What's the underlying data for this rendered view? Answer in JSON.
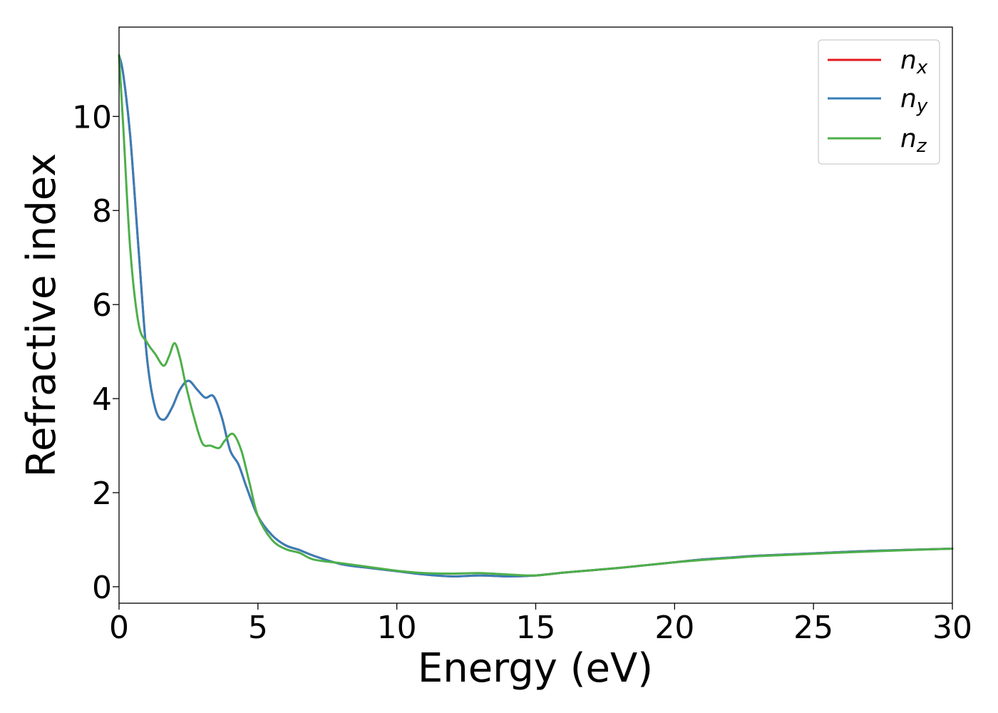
{
  "chart_data": {
    "type": "line",
    "xlabel": "Energy (eV)",
    "ylabel": "Refractive index",
    "xlim": [
      0,
      30
    ],
    "ylim": [
      -0.35,
      11.9
    ],
    "xticks": [
      0,
      5,
      10,
      15,
      20,
      25,
      30
    ],
    "yticks": [
      0,
      2,
      4,
      6,
      8,
      10
    ],
    "grid": false,
    "legend_position": "top-right",
    "series": [
      {
        "name": "n",
        "subscript": "x",
        "color": "#e41a1c",
        "x": [
          0,
          0.15,
          0.4,
          0.7,
          1.0,
          1.3,
          1.6,
          1.9,
          2.2,
          2.5,
          2.8,
          3.1,
          3.4,
          3.7,
          4.0,
          4.3,
          4.6,
          5.0,
          5.5,
          6.0,
          6.5,
          7.0,
          8.0,
          9.0,
          10.0,
          11.0,
          12.0,
          13.0,
          14.0,
          15.0,
          16.0,
          17.0,
          18.0,
          19.0,
          20.0,
          21.0,
          22.0,
          23.0,
          25.0,
          27.0,
          30.0
        ],
        "y": [
          11.3,
          10.9,
          9.6,
          7.2,
          4.9,
          3.8,
          3.55,
          3.8,
          4.2,
          4.38,
          4.2,
          4.02,
          4.05,
          3.6,
          2.9,
          2.6,
          2.1,
          1.5,
          1.1,
          0.88,
          0.78,
          0.66,
          0.48,
          0.4,
          0.33,
          0.26,
          0.22,
          0.24,
          0.22,
          0.24,
          0.3,
          0.35,
          0.4,
          0.46,
          0.52,
          0.58,
          0.62,
          0.66,
          0.71,
          0.76,
          0.81
        ]
      },
      {
        "name": "n",
        "subscript": "y",
        "color": "#377eb8",
        "x": [
          0,
          0.15,
          0.4,
          0.7,
          1.0,
          1.3,
          1.6,
          1.9,
          2.2,
          2.5,
          2.8,
          3.1,
          3.4,
          3.7,
          4.0,
          4.3,
          4.6,
          5.0,
          5.5,
          6.0,
          6.5,
          7.0,
          8.0,
          9.0,
          10.0,
          11.0,
          12.0,
          13.0,
          14.0,
          15.0,
          16.0,
          17.0,
          18.0,
          19.0,
          20.0,
          21.0,
          22.0,
          23.0,
          25.0,
          27.0,
          30.0
        ],
        "y": [
          11.3,
          10.9,
          9.6,
          7.2,
          4.9,
          3.8,
          3.55,
          3.8,
          4.2,
          4.38,
          4.2,
          4.02,
          4.05,
          3.6,
          2.9,
          2.6,
          2.1,
          1.5,
          1.1,
          0.88,
          0.78,
          0.66,
          0.48,
          0.4,
          0.33,
          0.26,
          0.22,
          0.24,
          0.22,
          0.24,
          0.3,
          0.35,
          0.4,
          0.46,
          0.52,
          0.58,
          0.62,
          0.66,
          0.71,
          0.76,
          0.81
        ]
      },
      {
        "name": "n",
        "subscript": "z",
        "color": "#4daf4a",
        "x": [
          0,
          0.15,
          0.4,
          0.7,
          1.0,
          1.3,
          1.6,
          1.8,
          2.0,
          2.2,
          2.4,
          2.7,
          3.0,
          3.3,
          3.6,
          3.8,
          4.1,
          4.4,
          4.7,
          5.0,
          5.5,
          6.0,
          6.5,
          7.0,
          8.0,
          9.0,
          10.0,
          11.0,
          12.0,
          13.0,
          14.0,
          15.0,
          16.0,
          17.0,
          18.0,
          19.0,
          20.0,
          21.0,
          22.0,
          23.0,
          25.0,
          27.0,
          30.0
        ],
        "y": [
          11.3,
          9.8,
          7.2,
          5.6,
          5.2,
          4.95,
          4.7,
          4.9,
          5.18,
          4.85,
          4.3,
          3.6,
          3.05,
          3.0,
          2.95,
          3.1,
          3.25,
          2.9,
          2.2,
          1.5,
          1.0,
          0.8,
          0.72,
          0.58,
          0.5,
          0.42,
          0.34,
          0.29,
          0.28,
          0.29,
          0.26,
          0.24,
          0.3,
          0.35,
          0.4,
          0.46,
          0.52,
          0.57,
          0.61,
          0.65,
          0.7,
          0.75,
          0.81
        ]
      }
    ]
  }
}
